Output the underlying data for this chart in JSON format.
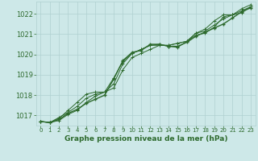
{
  "title": "Graphe pression niveau de la mer (hPa)",
  "background_color": "#cde8e8",
  "plot_bg_color": "#cde8e8",
  "grid_color": "#b0d0d0",
  "line_color": "#2d6a2d",
  "marker_color": "#2d6a2d",
  "xlim": [
    -0.5,
    23.5
  ],
  "ylim": [
    1016.5,
    1022.6
  ],
  "yticks": [
    1017,
    1018,
    1019,
    1020,
    1021,
    1022
  ],
  "xticks": [
    0,
    1,
    2,
    3,
    4,
    5,
    6,
    7,
    8,
    9,
    10,
    11,
    12,
    13,
    14,
    15,
    16,
    17,
    18,
    19,
    20,
    21,
    22,
    23
  ],
  "series": [
    [
      1016.7,
      1016.65,
      1016.8,
      1017.1,
      1017.3,
      1017.6,
      1017.8,
      1018.0,
      1018.8,
      1019.7,
      1020.1,
      1020.2,
      1020.5,
      1020.5,
      1020.4,
      1020.4,
      1020.6,
      1020.9,
      1021.1,
      1021.3,
      1021.5,
      1021.8,
      1022.1,
      1022.3
    ],
    [
      1016.7,
      1016.65,
      1016.9,
      1017.15,
      1017.45,
      1017.85,
      1018.05,
      1018.15,
      1018.85,
      1019.65,
      1020.05,
      1020.25,
      1020.45,
      1020.5,
      1020.4,
      1020.35,
      1020.65,
      1020.95,
      1021.05,
      1021.35,
      1021.85,
      1021.95,
      1022.25,
      1022.45
    ],
    [
      1016.7,
      1016.65,
      1016.75,
      1017.05,
      1017.25,
      1017.65,
      1017.95,
      1018.15,
      1018.55,
      1019.55,
      1020.05,
      1020.25,
      1020.45,
      1020.45,
      1020.45,
      1020.55,
      1020.65,
      1021.05,
      1021.15,
      1021.45,
      1021.75,
      1021.95,
      1022.05,
      1022.35
    ],
    [
      1016.7,
      1016.65,
      1016.85,
      1017.25,
      1017.65,
      1018.05,
      1018.15,
      1018.15,
      1018.35,
      1019.25,
      1019.85,
      1020.05,
      1020.25,
      1020.45,
      1020.45,
      1020.55,
      1020.65,
      1021.05,
      1021.25,
      1021.65,
      1021.95,
      1021.95,
      1022.15,
      1022.35
    ]
  ],
  "xlabel_fontsize": 6.5,
  "ytick_fontsize": 6,
  "xtick_fontsize": 5
}
